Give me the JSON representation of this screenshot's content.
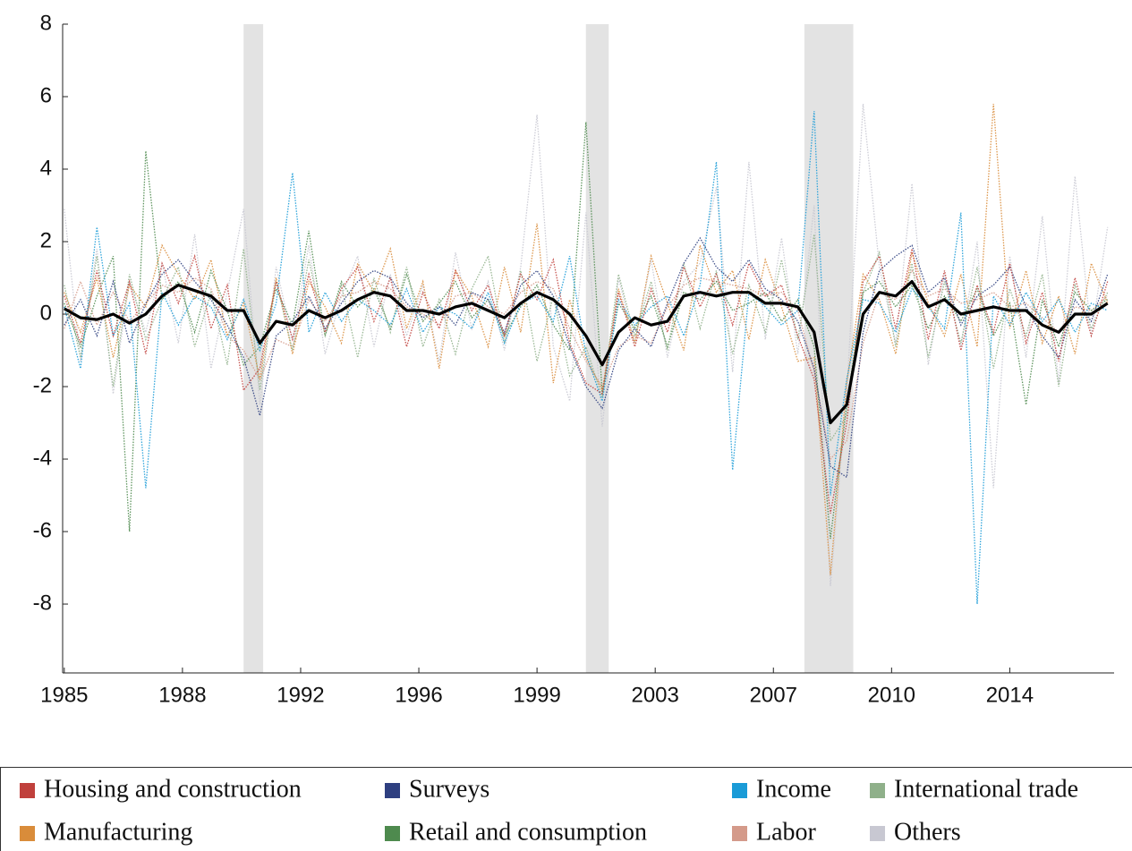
{
  "chart_data": {
    "type": "line",
    "x": [
      1985,
      1985.5,
      1986,
      1986.5,
      1987,
      1987.5,
      1988,
      1988.5,
      1989,
      1989.5,
      1990,
      1990.5,
      1991,
      1991.5,
      1992,
      1992.5,
      1993,
      1993.5,
      1994,
      1994.5,
      1995,
      1995.5,
      1996,
      1996.5,
      1997,
      1997.5,
      1998,
      1998.5,
      1999,
      1999.5,
      2000,
      2000.5,
      2001,
      2001.5,
      2002,
      2002.5,
      2003,
      2003.5,
      2004,
      2004.5,
      2005,
      2005.5,
      2006,
      2006.5,
      2007,
      2007.5,
      2008,
      2008.5,
      2009,
      2009.5,
      2010,
      2010.5,
      2011,
      2011.5,
      2012,
      2012.5,
      2013,
      2013.5,
      2014,
      2014.5,
      2015,
      2015.5,
      2016,
      2016.5,
      2017
    ],
    "series": [
      {
        "name": "Housing and construction",
        "color": "#c0403c",
        "values": [
          0.5,
          -0.8,
          1.2,
          -0.6,
          0.9,
          -1.1,
          1.4,
          0.3,
          1.6,
          -0.4,
          0.8,
          -2.1,
          -1.5,
          0.9,
          -0.7,
          1.1,
          -0.5,
          0.7,
          1.3,
          -0.2,
          1.0,
          -0.9,
          0.6,
          -0.4,
          1.2,
          0.1,
          0.8,
          -0.6,
          1.1,
          0.4,
          1.5,
          -0.8,
          -1.9,
          -2.2,
          0.6,
          -0.9,
          0.7,
          -0.5,
          1.3,
          0.2,
          1.1,
          -0.3,
          1.4,
          0.5,
          0.8,
          -0.6,
          -1.8,
          -5.5,
          -3.0,
          0.9,
          1.6,
          -0.4,
          1.8,
          -0.7,
          1.2,
          -1.0,
          0.8,
          -0.5,
          1.4,
          -0.8,
          0.6,
          -1.3,
          1.0,
          -0.6,
          0.9
        ]
      },
      {
        "name": "Surveys",
        "color": "#2e3f80",
        "values": [
          -0.3,
          0.4,
          -0.6,
          0.9,
          -0.8,
          0.3,
          1.1,
          1.5,
          0.9,
          0.4,
          -0.3,
          -1.2,
          -2.8,
          -0.6,
          -0.2,
          0.5,
          -0.4,
          0.3,
          0.9,
          1.2,
          1.0,
          0.3,
          -0.1,
          0.2,
          -0.3,
          0.6,
          0.4,
          -0.5,
          0.8,
          1.2,
          0.5,
          -0.9,
          -2.0,
          -2.6,
          -1.0,
          -0.4,
          -0.9,
          0.3,
          1.4,
          2.1,
          1.3,
          0.9,
          1.5,
          0.7,
          0.4,
          -0.2,
          -1.5,
          -4.2,
          -4.5,
          -0.5,
          1.2,
          1.6,
          1.9,
          0.6,
          1.0,
          -0.3,
          0.5,
          0.8,
          1.3,
          0.2,
          -0.6,
          -1.2,
          0.4,
          -0.2,
          1.1
        ]
      },
      {
        "name": "Income",
        "color": "#1a9bd7",
        "values": [
          0.2,
          -1.5,
          2.4,
          -0.6,
          0.3,
          -4.8,
          0.6,
          -0.3,
          0.5,
          0.2,
          -0.7,
          0.4,
          -1.0,
          0.3,
          3.9,
          -0.5,
          0.6,
          -0.2,
          0.4,
          0.1,
          -0.3,
          0.7,
          -0.5,
          0.2,
          0.0,
          -0.4,
          0.6,
          -0.8,
          0.3,
          0.5,
          -0.2,
          1.6,
          -1.1,
          -2.4,
          0.4,
          -0.3,
          0.2,
          0.5,
          -0.6,
          0.8,
          4.2,
          -4.3,
          0.6,
          0.2,
          -0.3,
          0.1,
          5.6,
          -5.0,
          -1.8,
          0.4,
          0.3,
          -0.5,
          0.7,
          0.2,
          -0.4,
          2.8,
          -8.0,
          0.5,
          -0.3,
          0.6,
          -0.2,
          0.4,
          -0.5,
          0.3,
          0.1
        ]
      },
      {
        "name": "International trade",
        "color": "#8fb08a",
        "values": [
          0.8,
          -1.2,
          1.6,
          -2.0,
          1.1,
          -0.7,
          0.4,
          1.3,
          -0.9,
          0.6,
          -1.4,
          1.8,
          -2.1,
          0.9,
          -1.0,
          1.5,
          -0.6,
          0.8,
          -1.2,
          1.0,
          -0.5,
          1.3,
          -0.9,
          0.4,
          -1.1,
          0.7,
          1.6,
          -0.8,
          1.2,
          -1.3,
          0.5,
          -1.7,
          -0.9,
          -2.3,
          1.1,
          -0.6,
          0.9,
          -1.0,
          1.4,
          -0.4,
          1.2,
          -1.1,
          0.8,
          -0.5,
          1.5,
          -0.7,
          2.2,
          -3.5,
          -2.8,
          0.6,
          1.7,
          -0.9,
          1.4,
          -1.2,
          0.9,
          -0.8,
          1.3,
          -1.5,
          0.7,
          -0.6,
          1.1,
          -2.0,
          0.8,
          -0.4,
          0.6
        ]
      },
      {
        "name": "Manufacturing",
        "color": "#d98c3a",
        "values": [
          0.6,
          -0.5,
          1.0,
          -1.2,
          0.8,
          0.2,
          1.9,
          1.1,
          0.4,
          1.5,
          -0.6,
          0.3,
          -1.8,
          1.0,
          -1.1,
          0.9,
          0.2,
          -0.8,
          1.4,
          0.6,
          1.8,
          -0.4,
          0.9,
          -1.5,
          1.2,
          0.5,
          -0.9,
          1.3,
          -0.5,
          2.5,
          -1.9,
          0.4,
          -1.2,
          -2.1,
          0.7,
          -0.8,
          1.6,
          0.3,
          -1.0,
          1.9,
          0.6,
          1.2,
          -0.7,
          1.5,
          0.2,
          -1.3,
          -1.2,
          -7.2,
          -1.9,
          1.1,
          0.4,
          -1.1,
          1.7,
          0.3,
          -0.6,
          1.1,
          -0.9,
          5.8,
          -0.4,
          1.2,
          -0.8,
          0.5,
          -1.1,
          1.4,
          0.3
        ]
      },
      {
        "name": "Retail and consumption",
        "color": "#4e8a4e",
        "values": [
          0.3,
          -0.9,
          0.5,
          1.6,
          -6.0,
          4.5,
          0.4,
          0.9,
          -0.5,
          1.2,
          0.1,
          -1.4,
          -0.9,
          0.7,
          -0.3,
          2.3,
          -0.6,
          0.9,
          0.2,
          0.7,
          -0.4,
          1.1,
          -0.2,
          0.3,
          0.9,
          -0.1,
          0.4,
          -0.6,
          0.2,
          0.8,
          -0.3,
          -1.0,
          5.3,
          -2.2,
          0.3,
          -0.4,
          0.5,
          -0.9,
          0.6,
          0.4,
          0.9,
          0.1,
          0.3,
          0.6,
          -0.2,
          0.4,
          -0.9,
          -6.2,
          -2.5,
          0.6,
          0.9,
          0.2,
          0.8,
          -0.4,
          0.5,
          -0.2,
          0.7,
          -0.6,
          0.3,
          -2.5,
          0.4,
          -0.9,
          0.6,
          0.1,
          0.4
        ]
      },
      {
        "name": "Labor",
        "color": "#d49a8a",
        "values": [
          -0.4,
          0.9,
          -0.3,
          0.6,
          -0.2,
          0.3,
          0.8,
          0.6,
          1.0,
          0.7,
          -0.6,
          -1.0,
          -1.8,
          -0.7,
          -0.9,
          0.4,
          -0.2,
          0.5,
          0.6,
          0.9,
          0.7,
          0.2,
          0.0,
          -0.3,
          0.5,
          0.6,
          0.2,
          0.0,
          0.6,
          0.9,
          0.7,
          -0.4,
          -1.3,
          -2.0,
          -0.9,
          -0.6,
          -0.8,
          0.2,
          0.8,
          1.0,
          0.9,
          0.8,
          0.7,
          0.5,
          0.6,
          0.1,
          -1.6,
          -4.0,
          -3.5,
          -0.8,
          0.6,
          0.4,
          1.2,
          0.5,
          0.7,
          0.3,
          0.4,
          0.6,
          0.2,
          0.3,
          -0.1,
          -0.5,
          0.2,
          0.1,
          0.5
        ]
      },
      {
        "name": "Others",
        "color": "#c8c8d2",
        "values": [
          2.9,
          -1.3,
          1.8,
          -2.2,
          0.9,
          -0.5,
          1.4,
          -0.8,
          2.2,
          -1.5,
          0.6,
          2.9,
          -2.5,
          1.3,
          -0.7,
          1.9,
          -1.1,
          0.5,
          1.6,
          -0.9,
          1.1,
          -0.6,
          0.8,
          -1.3,
          1.7,
          -0.4,
          0.9,
          -1.0,
          1.3,
          5.5,
          -0.9,
          -2.4,
          2.8,
          -3.1,
          1.0,
          -0.8,
          1.5,
          -1.2,
          0.9,
          1.4,
          3.5,
          -1.6,
          4.2,
          -0.7,
          2.1,
          -1.1,
          3.0,
          -7.5,
          -2.2,
          5.8,
          1.3,
          -0.8,
          3.6,
          -1.4,
          1.1,
          -0.9,
          2.0,
          -4.8,
          1.6,
          -1.2,
          2.7,
          -1.9,
          3.8,
          -0.6,
          2.4
        ]
      }
    ],
    "factor": {
      "color": "#000000",
      "values": [
        0.15,
        -0.1,
        -0.15,
        0.0,
        -0.25,
        0.0,
        0.5,
        0.8,
        0.65,
        0.5,
        0.1,
        0.1,
        -0.8,
        -0.2,
        -0.3,
        0.1,
        -0.1,
        0.1,
        0.4,
        0.6,
        0.5,
        0.1,
        0.1,
        0.0,
        0.2,
        0.3,
        0.1,
        -0.1,
        0.3,
        0.6,
        0.4,
        0.0,
        -0.6,
        -1.4,
        -0.5,
        -0.1,
        -0.3,
        -0.2,
        0.5,
        0.6,
        0.5,
        0.6,
        0.6,
        0.3,
        0.3,
        0.2,
        -0.5,
        -3.0,
        -2.5,
        0.0,
        0.6,
        0.5,
        0.9,
        0.2,
        0.4,
        0.0,
        0.1,
        0.2,
        0.1,
        0.1,
        -0.3,
        -0.5,
        0.0,
        0.0,
        0.3
      ]
    },
    "recessions": [
      [
        1990.5,
        1991.1
      ],
      [
        2001.0,
        2001.7
      ],
      [
        2007.7,
        2009.2
      ]
    ],
    "xlim": [
      1984.95,
      2017.2
    ],
    "ylim": [
      -9.9,
      8
    ],
    "xticks": [
      {
        "value": 1985,
        "label": "1985"
      },
      {
        "value": 1988.625,
        "label": "1988"
      },
      {
        "value": 1992.25,
        "label": "1992"
      },
      {
        "value": 1995.875,
        "label": "1996"
      },
      {
        "value": 1999.5,
        "label": "1999"
      },
      {
        "value": 2003.125,
        "label": "2003"
      },
      {
        "value": 2006.75,
        "label": "2007"
      },
      {
        "value": 2010.375,
        "label": "2010"
      },
      {
        "value": 2014,
        "label": "2014"
      }
    ],
    "yticks": [
      8,
      6,
      4,
      2,
      0,
      -2,
      -4,
      -6,
      -8
    ],
    "grid": false,
    "legend": "bottom"
  }
}
